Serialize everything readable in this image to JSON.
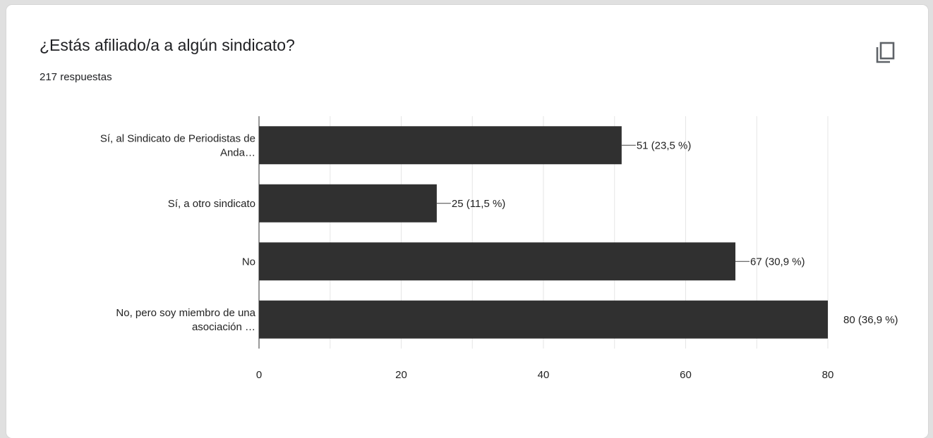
{
  "card": {
    "title": "¿Estás afiliado/a a algún sindicato?",
    "responses": "217 respuestas",
    "copy_icon": "copy-icon"
  },
  "chart_data": {
    "type": "bar",
    "orientation": "horizontal",
    "categories": [
      [
        "Sí, al Sindicato de Periodistas de",
        "Anda…"
      ],
      [
        "Sí, a otro sindicato"
      ],
      [
        "No"
      ],
      [
        "No, pero soy miembro de una",
        "asociación …"
      ]
    ],
    "values": [
      51,
      25,
      67,
      80
    ],
    "data_labels": [
      "51 (23,5 %)",
      "25 (11,5 %)",
      "67 (30,9 %)",
      "80 (36,9 %)"
    ],
    "xlim": [
      0,
      80
    ],
    "xticks": [
      0,
      20,
      40,
      60,
      80
    ],
    "grid": true,
    "bar_color": "#303030",
    "grid_color": "#e6e6e6"
  }
}
